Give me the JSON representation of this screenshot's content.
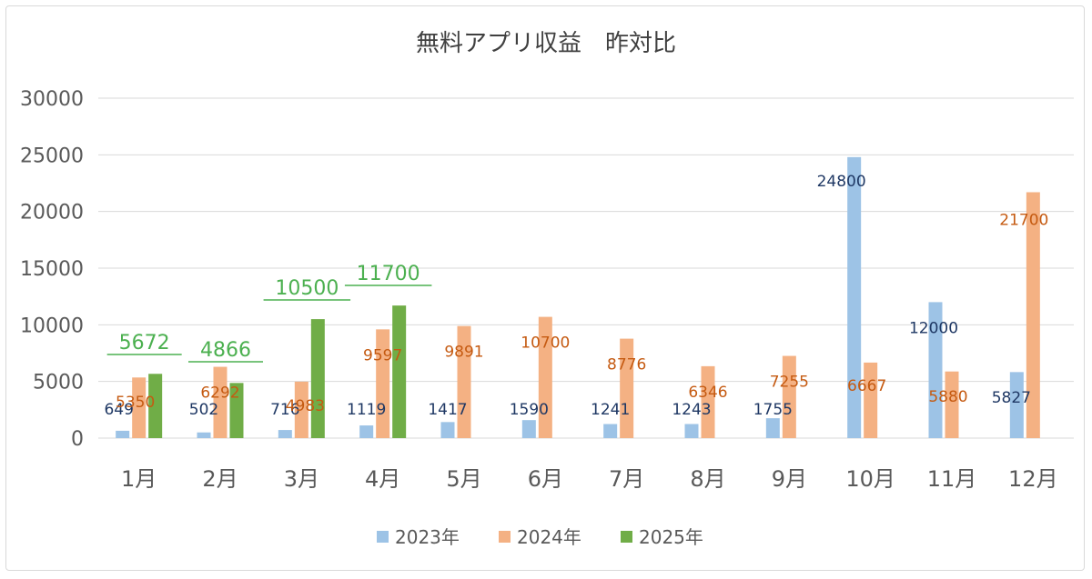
{
  "chart_data": {
    "type": "bar",
    "title": "無料アプリ収益　昨対比",
    "categories": [
      "1月",
      "2月",
      "3月",
      "4月",
      "5月",
      "6月",
      "7月",
      "8月",
      "9月",
      "10月",
      "11月",
      "12月"
    ],
    "series": [
      {
        "name": "2023年",
        "color": "#9dc3e6",
        "label_color": "#1f3864",
        "values": [
          649,
          502,
          716,
          1119,
          1417,
          1590,
          1241,
          1243,
          1755,
          24800,
          12000,
          5827
        ]
      },
      {
        "name": "2024年",
        "color": "#f4b183",
        "label_color": "#c55a11",
        "values": [
          5350,
          6292,
          4983,
          9597,
          9891,
          10700,
          8776,
          6346,
          7255,
          6667,
          5880,
          21700
        ]
      },
      {
        "name": "2025年",
        "color": "#70ad47",
        "label_color": "#4cb050",
        "values": [
          5672,
          4866,
          10500,
          11700,
          null,
          null,
          null,
          null,
          null,
          null,
          null,
          null
        ]
      }
    ],
    "y_ticks": [
      0,
      5000,
      10000,
      15000,
      20000,
      25000,
      30000
    ],
    "ylim": [
      0,
      30000
    ],
    "grid": true,
    "legend_position": "bottom"
  }
}
